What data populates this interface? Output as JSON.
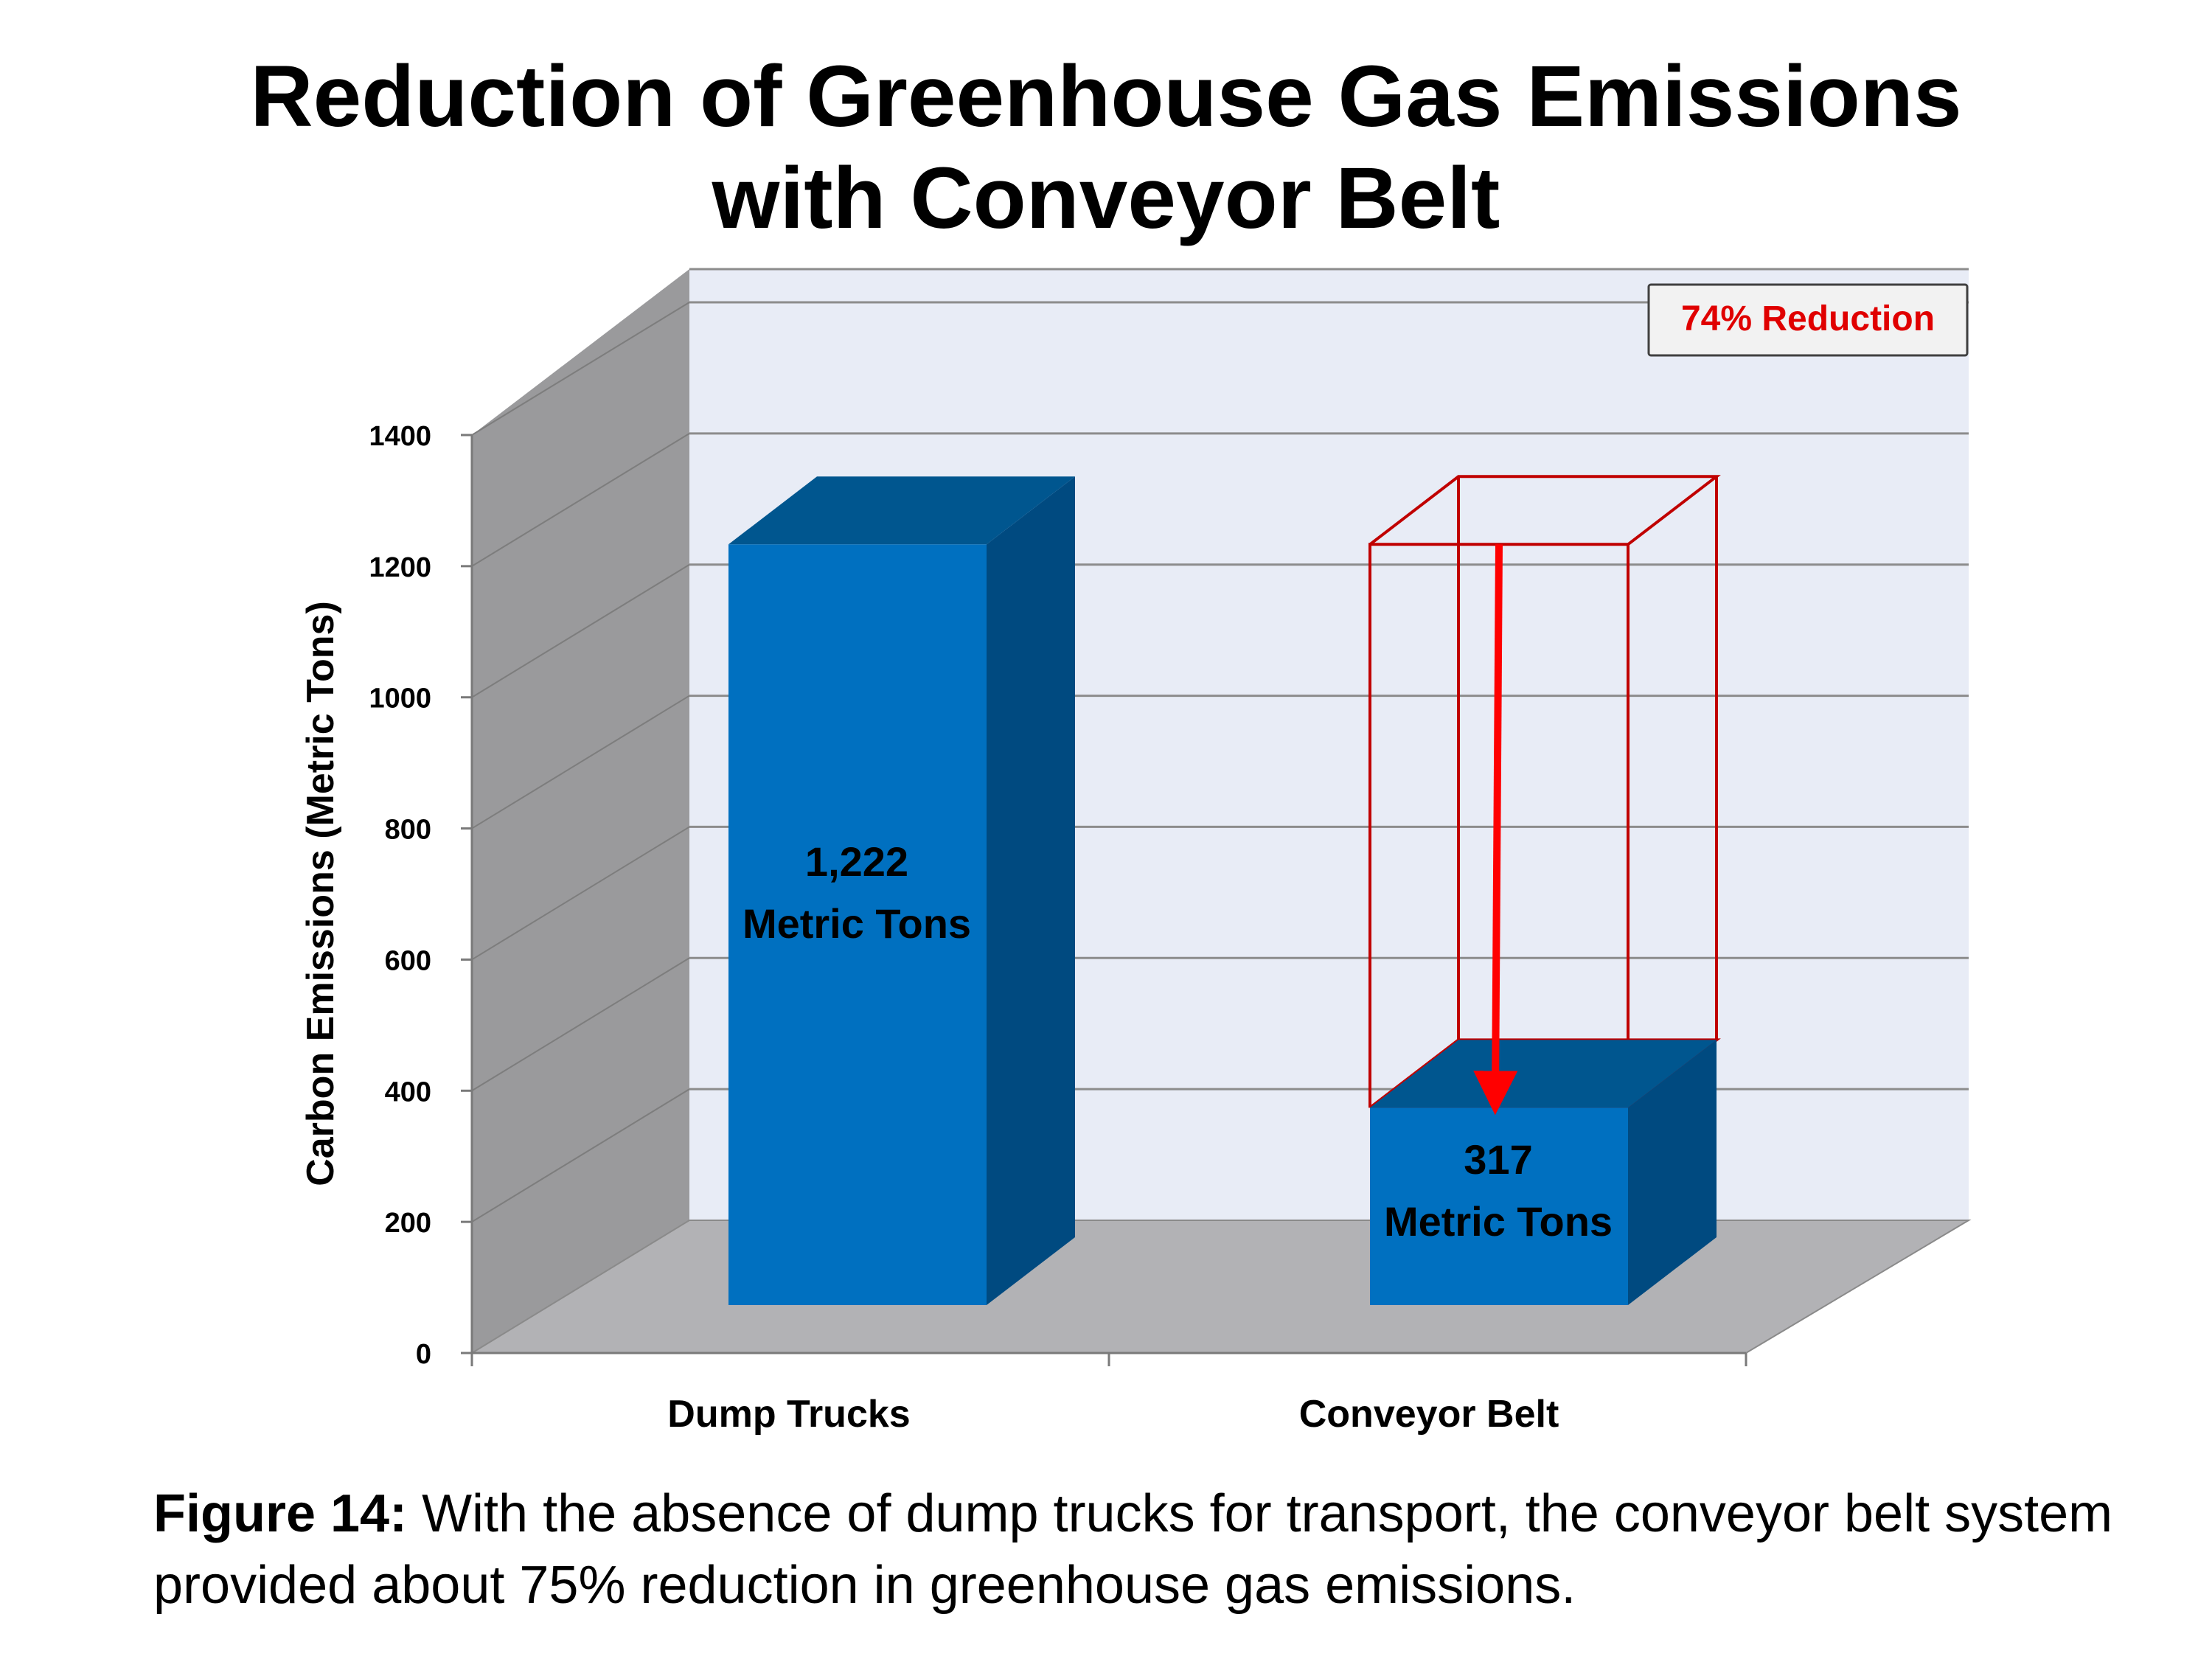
{
  "chart_data": {
    "type": "bar",
    "title_lines": [
      "Reduction of Greenhouse Gas Emissions",
      "with Conveyor Belt"
    ],
    "ylabel": "Carbon Emissions (Metric Tons)",
    "ylim": [
      0,
      1400
    ],
    "yticks": [
      "0",
      "200",
      "400",
      "600",
      "800",
      "1000",
      "1200",
      "1400"
    ],
    "categories": [
      "Dump Trucks",
      "Conveyor Belt"
    ],
    "values": [
      1222,
      317
    ],
    "data_labels": [
      [
        "1,222",
        "Metric Tons"
      ],
      [
        "317",
        "Metric Tons"
      ]
    ],
    "annotation": "74% Reduction",
    "grid": true
  },
  "caption": {
    "label": "Figure 14:",
    "text": " With the absence of dump trucks for transport, the conveyor belt system provided about 75% reduction in greenhouse gas emissions."
  },
  "colors": {
    "bar_front": "#0070c0",
    "bar_side": "#004a80",
    "bar_top": "#00568f",
    "outline_red": "#c00000",
    "arrow_red": "#ff0000",
    "back_wall": "#e8ecf6",
    "side_wall": "#9a9a9c",
    "floor": "#b2b2b5"
  }
}
